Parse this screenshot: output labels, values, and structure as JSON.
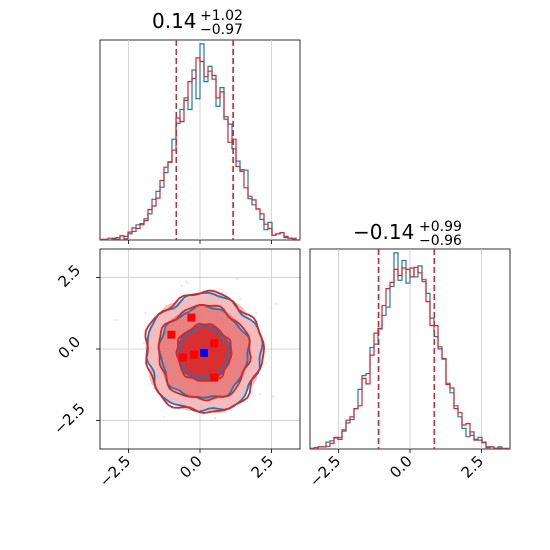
{
  "colors": {
    "series_a": "#1f77b4",
    "series_b": "#d62728",
    "grid": "#cccccc",
    "truth_marker": "#0000ff",
    "sample_marker": "#ff0000"
  },
  "panel_titles": {
    "x1": {
      "value": "0.14",
      "upper": "+1.02",
      "lower": "−0.97"
    },
    "x2": {
      "value": "−0.14",
      "upper": "+0.99",
      "lower": "−0.96"
    }
  },
  "axes": {
    "xlim": [
      -3.5,
      3.5
    ],
    "ylim": [
      -3.5,
      3.5
    ],
    "ticks": [
      -2.5,
      0.0,
      2.5
    ],
    "tick_labels": [
      "−2.5",
      "0.0",
      "2.5"
    ]
  },
  "chart_data": [
    {
      "type": "histogram",
      "panel": "top-left",
      "title": "0.14 (+1.02 / −0.97)",
      "xlim": [
        -3.5,
        3.5
      ],
      "grid": true,
      "bin_width": 0.14,
      "series": [
        {
          "name": "",
          "color": "#1f77b4",
          "center": 0.14,
          "spread": 1.0
        },
        {
          "name": "",
          "color": "#d62728",
          "center": 0.14,
          "spread": 1.0
        }
      ],
      "quantile_lines": [
        -0.83,
        0.14,
        1.16
      ],
      "shown_quantiles": [
        -0.83,
        1.16
      ]
    },
    {
      "type": "histogram",
      "panel": "bottom-right",
      "title": "−0.14 (+0.99 / −0.96)",
      "xlim": [
        -3.5,
        3.5
      ],
      "grid": true,
      "bin_width": 0.14,
      "series": [
        {
          "name": "",
          "color": "#1f77b4",
          "center": -0.14,
          "spread": 1.0
        },
        {
          "name": "",
          "color": "#d62728",
          "center": -0.14,
          "spread": 1.0
        }
      ],
      "quantile_lines": [
        -1.1,
        -0.14,
        0.85
      ],
      "shown_quantiles": [
        -1.1,
        0.85
      ]
    },
    {
      "type": "scatter",
      "panel": "bottom-left",
      "subtype": "2d-density-contour",
      "xlim": [
        -3.5,
        3.5
      ],
      "ylim": [
        -3.5,
        3.5
      ],
      "grid": true,
      "contour_levels": [
        {
          "series": "a",
          "color": "#1f77b4",
          "rx": 0.85,
          "ry": 0.9
        },
        {
          "series": "a",
          "color": "#1f77b4",
          "rx": 1.55,
          "ry": 1.6
        },
        {
          "series": "a",
          "color": "#1f77b4",
          "rx": 2.0,
          "ry": 2.05
        },
        {
          "series": "b",
          "color": "#d62728",
          "rx": 0.95,
          "ry": 1.0
        },
        {
          "series": "b",
          "color": "#d62728",
          "rx": 1.6,
          "ry": 1.65
        },
        {
          "series": "b",
          "color": "#d62728",
          "rx": 2.05,
          "ry": 2.1
        }
      ],
      "truth_point": {
        "x": 0.14,
        "y": -0.14,
        "color": "#0000ff"
      },
      "sample_points": [
        {
          "x": -1.0,
          "y": 0.5
        },
        {
          "x": -0.3,
          "y": 1.1
        },
        {
          "x": 0.5,
          "y": 0.2
        },
        {
          "x": -0.2,
          "y": -0.2
        },
        {
          "x": -0.6,
          "y": -0.3
        },
        {
          "x": 0.5,
          "y": -1.0
        }
      ]
    }
  ]
}
